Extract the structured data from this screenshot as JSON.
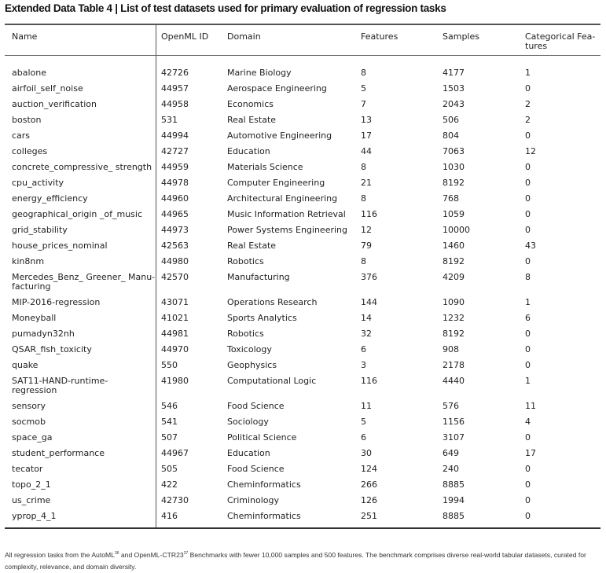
{
  "title": "Extended Data Table 4 | List of test datasets used for primary evaluation of regression tasks",
  "columns": [
    "Name",
    "OpenML ID",
    "Domain",
    "Features",
    "Samples",
    "Categorical Fea-\ntures"
  ],
  "rows": [
    [
      "abalone",
      "42726",
      "Marine Biology",
      "8",
      "4177",
      "1"
    ],
    [
      "airfoil_self_noise",
      "44957",
      "Aerospace Engineering",
      "5",
      "1503",
      "0"
    ],
    [
      "auction_verification",
      "44958",
      "Economics",
      "7",
      "2043",
      "2"
    ],
    [
      "boston",
      "531",
      "Real Estate",
      "13",
      "506",
      "2"
    ],
    [
      "cars",
      "44994",
      "Automotive Engineering",
      "17",
      "804",
      "0"
    ],
    [
      "colleges",
      "42727",
      "Education",
      "44",
      "7063",
      "12"
    ],
    [
      "concrete_compressive_ strength",
      "44959",
      "Materials Science",
      "8",
      "1030",
      "0"
    ],
    [
      "cpu_activity",
      "44978",
      "Computer Engineering",
      "21",
      "8192",
      "0"
    ],
    [
      "energy_efficiency",
      "44960",
      "Architectural Engineering",
      "8",
      "768",
      "0"
    ],
    [
      "geographical_origin _of_music",
      "44965",
      "Music Information Retrieval",
      "116",
      "1059",
      "0"
    ],
    [
      "grid_stability",
      "44973",
      "Power Systems Engineering",
      "12",
      "10000",
      "0"
    ],
    [
      "house_prices_nominal",
      "42563",
      "Real Estate",
      "79",
      "1460",
      "43"
    ],
    [
      "kin8nm",
      "44980",
      "Robotics",
      "8",
      "8192",
      "0"
    ],
    [
      "Mercedes_Benz_ Greener_ Manu-\nfacturing",
      "42570",
      "Manufacturing",
      "376",
      "4209",
      "8"
    ],
    [
      "MIP-2016-regression",
      "43071",
      "Operations Research",
      "144",
      "1090",
      "1"
    ],
    [
      "Moneyball",
      "41021",
      "Sports Analytics",
      "14",
      "1232",
      "6"
    ],
    [
      "pumadyn32nh",
      "44981",
      "Robotics",
      "32",
      "8192",
      "0"
    ],
    [
      "QSAR_fish_toxicity",
      "44970",
      "Toxicology",
      "6",
      "908",
      "0"
    ],
    [
      "quake",
      "550",
      "Geophysics",
      "3",
      "2178",
      "0"
    ],
    [
      "SAT11-HAND-runtime-\nregression",
      "41980",
      "Computational Logic",
      "116",
      "4440",
      "1"
    ],
    [
      " sensory",
      "546",
      "Food Science",
      "11",
      "576",
      "11"
    ],
    [
      "socmob",
      "541",
      "Sociology",
      "5",
      "1156",
      "4"
    ],
    [
      "space_ga",
      "507",
      "Political Science",
      "6",
      "3107",
      "0"
    ],
    [
      "student_performance",
      "44967",
      "Education",
      "30",
      "649",
      "17"
    ],
    [
      "tecator",
      "505",
      "Food Science",
      "124",
      "240",
      "0"
    ],
    [
      "topo_2_1",
      "422",
      "Cheminformatics",
      "266",
      "8885",
      "0"
    ],
    [
      "us_crime",
      "42730",
      "Criminology",
      "126",
      "1994",
      "0"
    ],
    [
      "yprop_4_1",
      "416",
      "Cheminformatics",
      "251",
      "8885",
      "0"
    ]
  ],
  "footnote": {
    "part1": "All regression tasks from the AutoML",
    "ref1": "36",
    "part2": " and OpenML-CTR23",
    "ref2": "37",
    "part3": " Benchmarks with fewer 10,000 samples and 500 features. The benchmark comprises diverse real-world tabular datasets, curated for complexity, relevance, and domain diversity."
  }
}
